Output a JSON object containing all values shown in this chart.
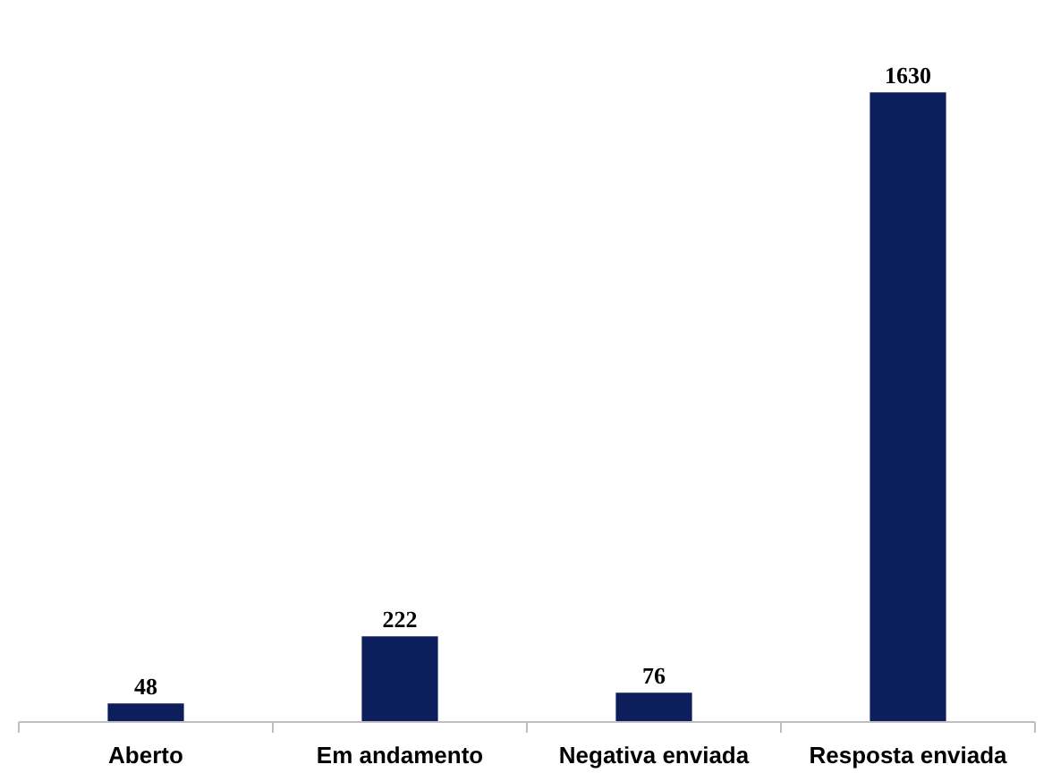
{
  "chart_data": {
    "type": "bar",
    "categories": [
      "Aberto",
      "Em andamento",
      "Negativa enviada",
      "Resposta enviada"
    ],
    "values": [
      48,
      222,
      76,
      1630
    ],
    "color": "#0c1f5c",
    "data_labels": true,
    "tick_labels": "x"
  }
}
